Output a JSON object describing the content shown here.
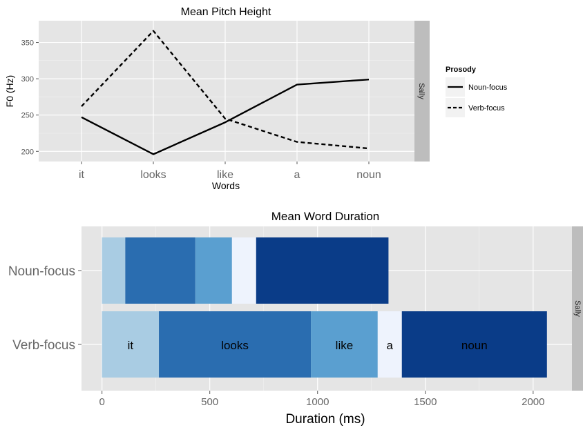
{
  "chart_data": [
    {
      "type": "line",
      "title": "Mean Pitch Height",
      "xlabel": "Words",
      "ylabel": "F0 (Hz)",
      "categories": [
        "it",
        "looks",
        "like",
        "a",
        "noun"
      ],
      "yticks": [
        200,
        250,
        300,
        350
      ],
      "ylim": [
        186,
        380
      ],
      "grid": true,
      "facet_label": "Sally",
      "legend": {
        "title": "Prosody",
        "placement": "right",
        "entries": [
          {
            "label": "Noun-focus",
            "style": "solid"
          },
          {
            "label": "Verb-focus",
            "style": "dashed"
          }
        ]
      },
      "series": [
        {
          "name": "Noun-focus",
          "values": [
            247,
            196,
            240,
            292,
            299
          ]
        },
        {
          "name": "Verb-focus",
          "values": [
            262,
            366,
            245,
            213,
            204
          ]
        }
      ]
    },
    {
      "type": "bar",
      "orientation": "horizontal",
      "stacked": true,
      "title": "Mean Word Duration",
      "xlabel": "Duration (ms)",
      "ylabel": "",
      "xticks": [
        0,
        500,
        1000,
        1500,
        2000
      ],
      "xlim": [
        -95,
        2180
      ],
      "grid": true,
      "facet_label": "Sally",
      "categories": [
        "Noun-focus",
        "Verb-focus"
      ],
      "segment_words": [
        "it",
        "looks",
        "like",
        "a",
        "noun"
      ],
      "segment_colors": [
        "#a9cce3",
        "#2a6db0",
        "#5a9fd0",
        "#eef3fd",
        "#0a3c88"
      ],
      "durations": {
        "Noun-focus": [
          108,
          325,
          170,
          112,
          614
        ],
        "Verb-focus": [
          264,
          705,
          310,
          112,
          673
        ]
      },
      "bar_labels": {
        "Verb-focus": [
          "it",
          "looks",
          "like",
          "a",
          "noun"
        ]
      }
    }
  ]
}
